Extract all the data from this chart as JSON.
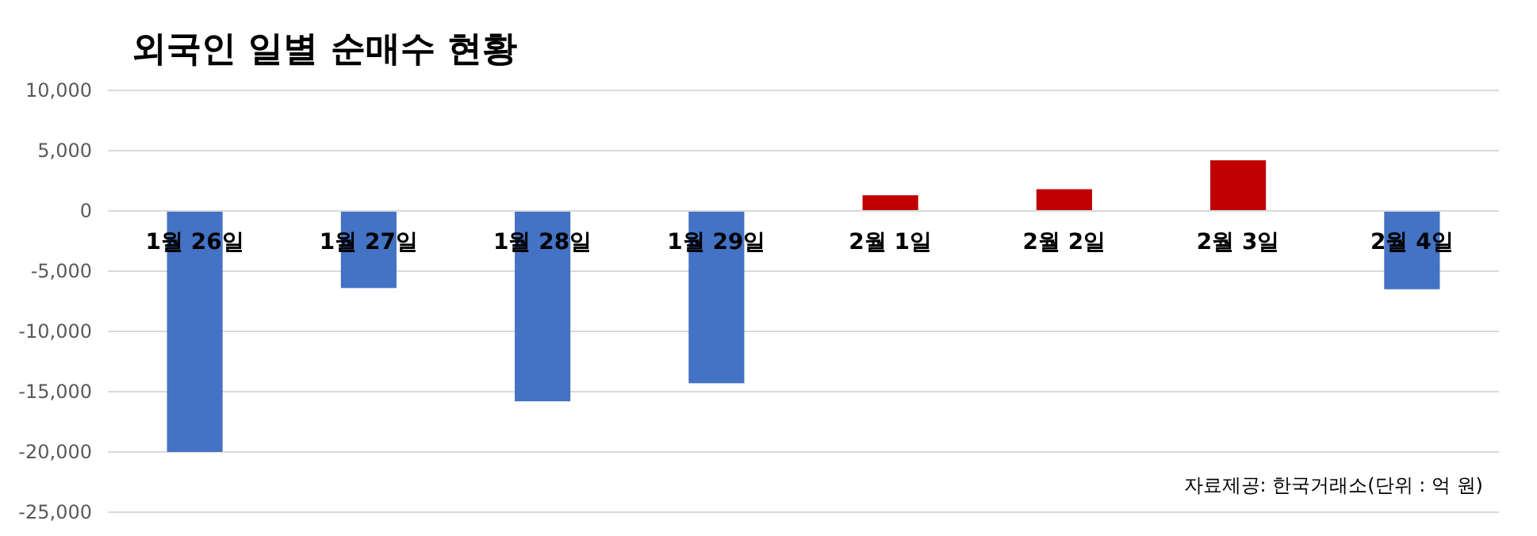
{
  "chart_data": {
    "type": "bar",
    "title": "외국인 일별 순매수 현황",
    "categories": [
      "1월 26일",
      "1월 27일",
      "1월 28일",
      "1월 29일",
      "2월 1일",
      "2월 2일",
      "2월 3일",
      "2월 4일"
    ],
    "values": [
      -20000,
      -6400,
      -15800,
      -14300,
      1300,
      1800,
      4200,
      -6500
    ],
    "colors": [
      "#4472c4",
      "#4472c4",
      "#4472c4",
      "#4472c4",
      "#c00000",
      "#c00000",
      "#c00000",
      "#4472c4"
    ],
    "ylim": [
      -25000,
      10000
    ],
    "yticks": [
      {
        "value": -25000,
        "label": "-25,000"
      },
      {
        "value": -20000,
        "label": "-20,000"
      },
      {
        "value": -15000,
        "label": "-15,000"
      },
      {
        "value": -10000,
        "label": "-10,000"
      },
      {
        "value": -5000,
        "label": "-5,000"
      },
      0,
      {
        "value": 5000,
        "label": "5,000"
      },
      {
        "value": 10000,
        "label": "10,000"
      }
    ],
    "grid": "y",
    "annotations": [
      "자료제공: 한국거래소(단위 : 억 원)"
    ]
  }
}
